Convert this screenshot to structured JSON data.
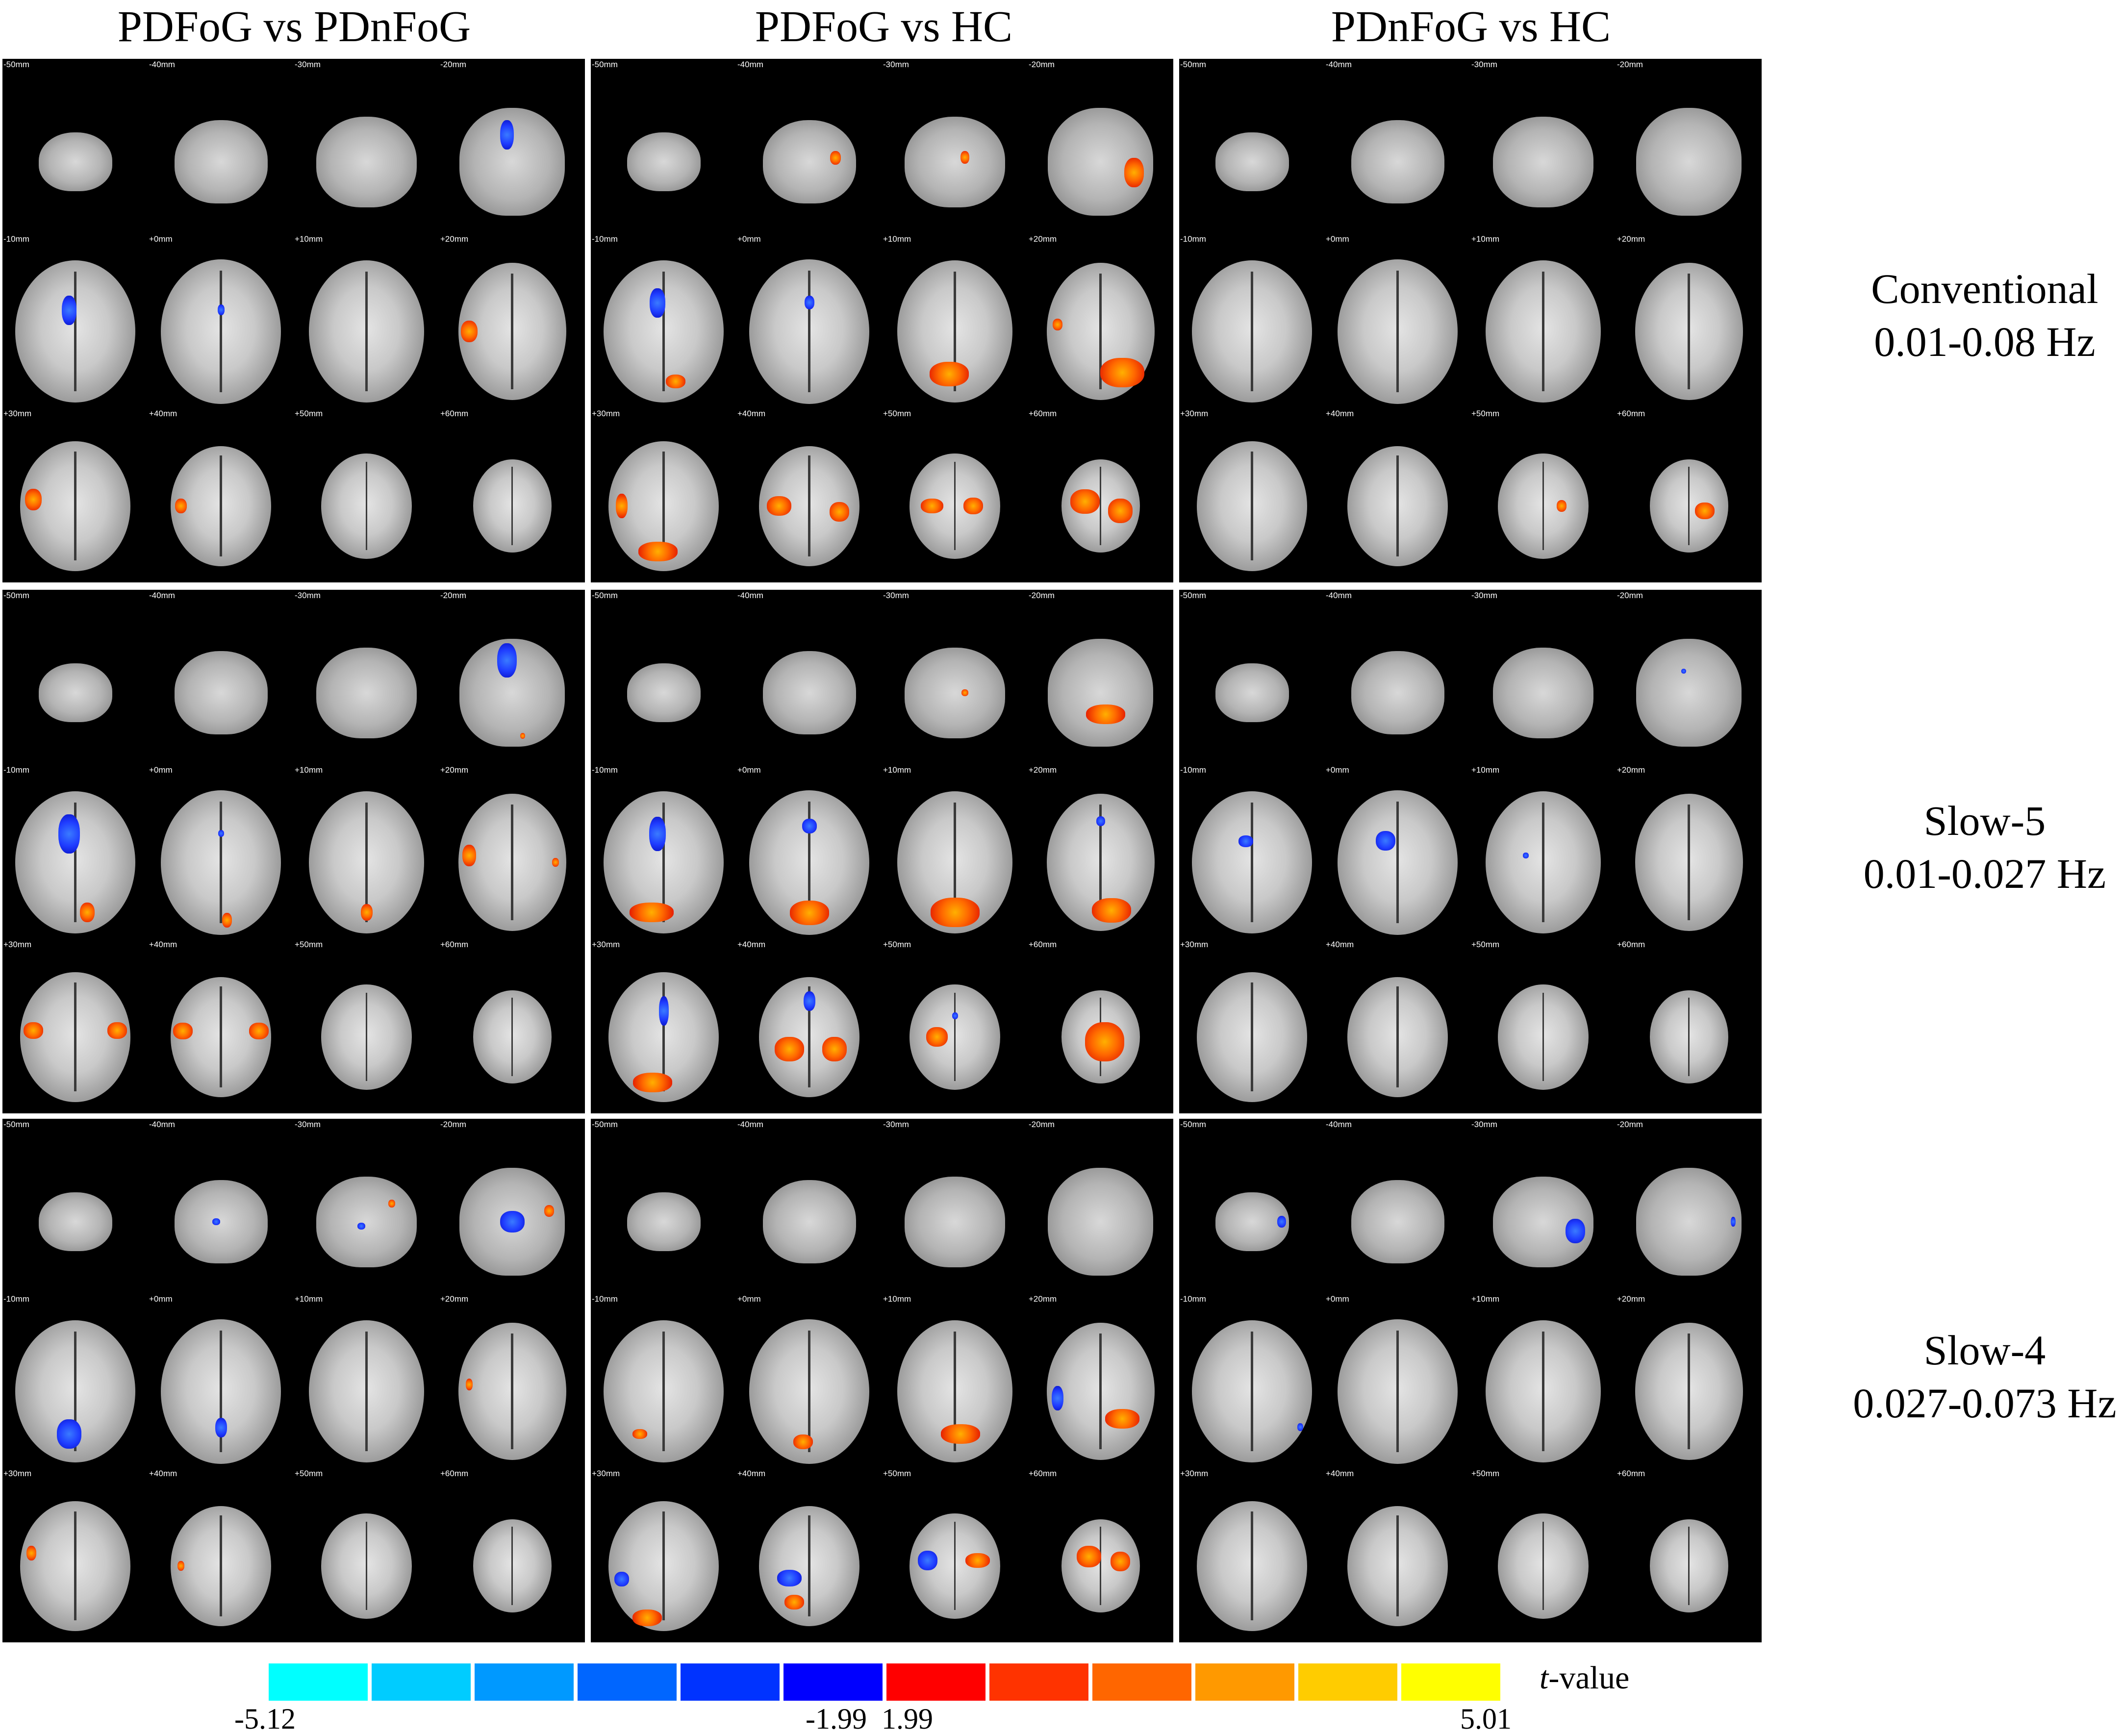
{
  "column_titles": [
    "PDFoG vs PDnFoG",
    "PDFoG vs HC",
    "PDnFoG vs HC"
  ],
  "row_labels": [
    {
      "name": "Conventional",
      "band": "0.01-0.08 Hz"
    },
    {
      "name": "Slow-5",
      "band": "0.01-0.027 Hz"
    },
    {
      "name": "Slow-4",
      "band": "0.027-0.073 Hz"
    }
  ],
  "slice_labels": [
    "-50mm",
    "-40mm",
    "-30mm",
    "-20mm",
    "-10mm",
    "+0mm",
    "+10mm",
    "+20mm",
    "+30mm",
    "+40mm",
    "+50mm",
    "+60mm"
  ],
  "colorbar": {
    "title_italic": "t",
    "title_rest": "-value",
    "min_label": "-5.12",
    "neg_threshold_label": "-1.99",
    "pos_threshold_label": "1.99",
    "max_label": "5.01",
    "colors": [
      "#00ffff",
      "#00ccff",
      "#0099ff",
      "#0066ff",
      "#0033ff",
      "#0000ff",
      "#ff0000",
      "#ff3300",
      "#ff6600",
      "#ff9900",
      "#ffcc00",
      "#ffff00"
    ]
  },
  "colors": {
    "positive": "#ff4000",
    "negative": "#1f3cff",
    "panel_background": "#000000"
  }
}
